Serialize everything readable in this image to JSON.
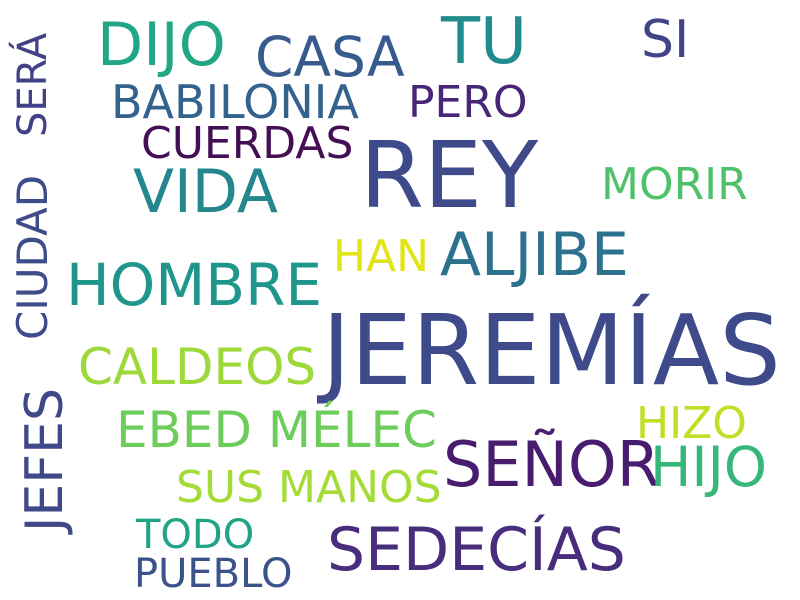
{
  "words": [
    {
      "text": "JEREMÍAS",
      "color": "#3f4a8a"
    },
    {
      "text": "REY",
      "color": "#3f4a8a"
    },
    {
      "text": "SEÑOR",
      "color": "#481c6e"
    },
    {
      "text": "SEDECÍAS",
      "color": "#472d7b"
    },
    {
      "text": "HOMBRE",
      "color": "#1f968b"
    },
    {
      "text": "ALJIBE",
      "color": "#2c728e"
    },
    {
      "text": "VIDA",
      "color": "#23878d"
    },
    {
      "text": "DIJO",
      "color": "#22a785"
    },
    {
      "text": "TU",
      "color": "#228c8d"
    },
    {
      "text": "CASA",
      "color": "#375b8d"
    },
    {
      "text": "SI",
      "color": "#414487"
    },
    {
      "text": "BABILONIA",
      "color": "#33638d"
    },
    {
      "text": "PERO",
      "color": "#482576"
    },
    {
      "text": "CUERDAS",
      "color": "#440f54"
    },
    {
      "text": "MORIR",
      "color": "#4fc16a"
    },
    {
      "text": "HAN",
      "color": "#e2e418"
    },
    {
      "text": "CALDEOS",
      "color": "#9dd93b"
    },
    {
      "text": "EBED MÉLEC",
      "color": "#6ccd5a"
    },
    {
      "text": "HIZO",
      "color": "#c1df24"
    },
    {
      "text": "HIJO",
      "color": "#35b779"
    },
    {
      "text": "SUS MANOS",
      "color": "#a5db36"
    },
    {
      "text": "TODO",
      "color": "#20a386"
    },
    {
      "text": "PUEBLO",
      "color": "#3b528b"
    },
    {
      "text": "SERÁ",
      "color": "#424086"
    },
    {
      "text": "CIUDAD",
      "color": "#3e4c8a"
    },
    {
      "text": "JEFES",
      "color": "#3f4889"
    }
  ]
}
